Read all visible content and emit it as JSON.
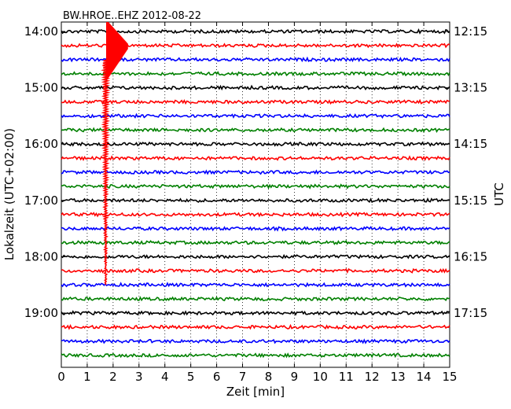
{
  "chart_data": {
    "type": "line",
    "title": "BW.HROE..EHZ 2012-08-22",
    "xlabel": "Zeit  [min]",
    "ylabel_left": "Lokalzeit (UTC+02:00)",
    "ylabel_right": "UTC",
    "xlim": [
      0,
      15
    ],
    "x_ticks": [
      "0",
      "1",
      "2",
      "3",
      "4",
      "5",
      "6",
      "7",
      "8",
      "9",
      "10",
      "11",
      "12",
      "13",
      "14",
      "15"
    ],
    "grid": true,
    "left_ticks": [
      "14:00",
      "15:00",
      "16:00",
      "17:00",
      "18:00",
      "19:00"
    ],
    "right_ticks": [
      "12:15",
      "13:15",
      "14:15",
      "15:15",
      "16:15",
      "17:15"
    ],
    "trace_colors": [
      "#000000",
      "#ff0000",
      "#0000ff",
      "#008000"
    ],
    "trace_count": 24,
    "trace_interval_min": 15,
    "first_trace_start": "14:00",
    "event": {
      "onset_min": 1.75,
      "amplitude_trace": 1,
      "coda_until_trace": 18,
      "color": "#ff0000"
    }
  }
}
